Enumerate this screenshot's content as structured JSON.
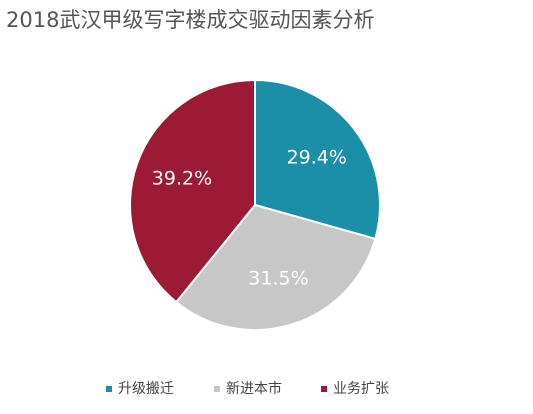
{
  "chart_data": {
    "type": "pie",
    "title": "2018武汉甲级写字楼成交驱动因素分析",
    "categories": [
      "升级搬迁",
      "新进本市",
      "业务扩张"
    ],
    "values": [
      29.4,
      31.5,
      39.2
    ],
    "value_labels": [
      "29.4%",
      "31.5%",
      "39.2%"
    ],
    "colors": [
      "#1b8ea8",
      "#c7c7c7",
      "#9c1a33"
    ],
    "legend": "bottom"
  }
}
